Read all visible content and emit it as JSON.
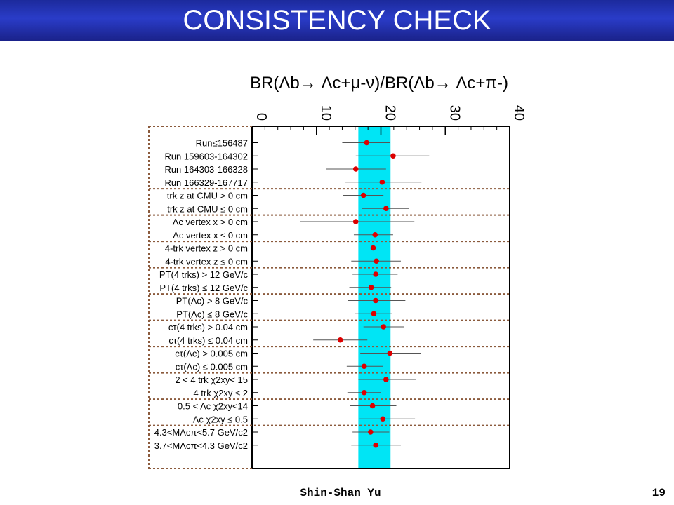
{
  "slide": {
    "title": "CONSISTENCY CHECK",
    "author": "Shin-Shan Yu",
    "page_number": "19"
  },
  "colors": {
    "header_blue": "#2233b0",
    "band": "#00e5f5",
    "marker": "#dd0000",
    "separator": "#8b5a3c"
  },
  "chart_data": {
    "type": "scatter",
    "orientation": "horizontal",
    "title": "BR(Λb→ Λc+μ-ν)/BR(Λb→ Λc+π-)",
    "xlim": [
      0,
      40
    ],
    "x_ticks": [
      "0",
      "10",
      "20",
      "30",
      "40"
    ],
    "band": {
      "from": 16.5,
      "to": 21.5
    },
    "categories": [
      "Run≤156487",
      "Run 159603-164302",
      "Run 164303-166328",
      "Run 166329-167717",
      "trk z at CMU > 0 cm",
      "trk z at CMU ≤ 0 cm",
      "Λc vertex x > 0 cm",
      "Λc vertex x ≤ 0 cm",
      "4-trk vertex z > 0 cm",
      "4-trk vertex z ≤ 0 cm",
      "PT(4 trks) > 12 GeV/c",
      "PT(4 trks) ≤ 12 GeV/c",
      "PT(Λc) > 8 GeV/c",
      "PT(Λc) ≤ 8 GeV/c",
      "cτ(4 trks) > 0.04 cm",
      "cτ(4 trks) ≤ 0.04 cm",
      "cτ(Λc) > 0.005 cm",
      "cτ(Λc) ≤ 0.005 cm",
      "2 < 4 trk χ2xy< 15",
      "4 trk χ2xy ≤ 2",
      "0.5 < Λc χ2xy<14",
      "Λc χ2xy ≤ 0.5",
      "4.3<MΛcπ<5.7 GeV/c2",
      "3.7<MΛcπ<4.3 GeV/c2"
    ],
    "values": [
      17.8,
      21.9,
      16.1,
      20.2,
      17.3,
      20.8,
      16.1,
      19.1,
      18.8,
      19.3,
      19.2,
      18.5,
      19.2,
      18.9,
      20.4,
      13.7,
      21.4,
      17.4,
      20.8,
      17.4,
      18.7,
      20.3,
      18.4,
      19.2
    ],
    "err_low": [
      3.8,
      5.8,
      4.6,
      5.7,
      3.2,
      3.7,
      8.6,
      3.3,
      3.4,
      3.9,
      3.6,
      3.4,
      4.3,
      2.9,
      3.1,
      4.2,
      4.6,
      2.7,
      4.3,
      2.6,
      3.5,
      3.6,
      2.8,
      3.8
    ],
    "err_high": [
      3.6,
      5.6,
      4.7,
      6.1,
      3.1,
      3.6,
      9.1,
      2.8,
      3.2,
      3.8,
      3.4,
      3.1,
      4.6,
      2.8,
      3.2,
      4.2,
      4.8,
      2.9,
      4.7,
      2.6,
      3.7,
      5.0,
      2.9,
      3.9
    ],
    "groups": [
      4,
      2,
      2,
      2,
      2,
      2,
      2,
      2,
      2,
      2,
      2
    ],
    "grid": false
  }
}
